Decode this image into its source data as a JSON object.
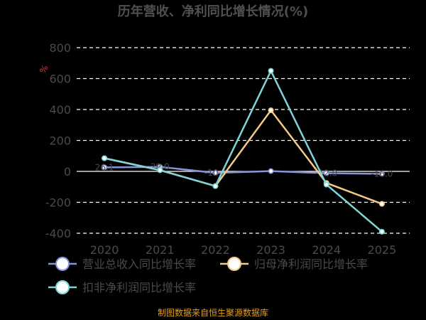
{
  "chart_data": {
    "type": "line",
    "title": "历年营收、净利同比增长情况(%)",
    "unit": "%",
    "categories": [
      "2020",
      "2021",
      "2022",
      "2023",
      "2024",
      "2025"
    ],
    "ylim": [
      -400,
      800
    ],
    "yticks": [
      800,
      600,
      400,
      200,
      0,
      -200,
      -400
    ],
    "grid": true,
    "legend_position": "bottom",
    "series": [
      {
        "name": "营业总收入同比增长率",
        "color": "#8a93d6",
        "values": [
          26.1,
          29.0,
          -10.0,
          2.0,
          -12.0,
          -16.0
        ],
        "labels": [
          "26.1",
          "29.0",
          "-10.0",
          "",
          "-12.0",
          "-16.0"
        ]
      },
      {
        "name": "归母净利润同比增长率",
        "color": "#f5c98a",
        "values": [
          85,
          8,
          -95,
          395,
          -75,
          -210
        ],
        "labels": []
      },
      {
        "name": "扣非净利润同比增长率",
        "color": "#7fd4d8",
        "values": [
          85,
          8,
          -95,
          650,
          -85,
          -390
        ],
        "labels": []
      }
    ]
  },
  "footer": "制图数据来自恒生聚源数据库"
}
